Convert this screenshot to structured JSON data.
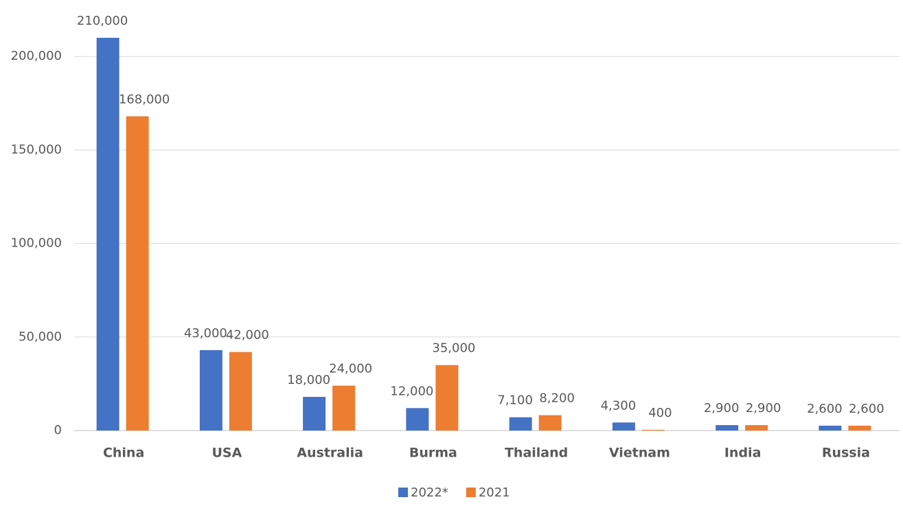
{
  "chart_data": {
    "type": "bar",
    "categories": [
      "China",
      "USA",
      "Australia",
      "Burma",
      "Thailand",
      "Vietnam",
      "India",
      "Russia"
    ],
    "series": [
      {
        "name": "2022*",
        "color": "#4472c4",
        "values": [
          210000,
          43000,
          18000,
          12000,
          7100,
          4300,
          2900,
          2600
        ],
        "value_labels": [
          "210,000",
          "43,000",
          "18,000",
          "12,000",
          "7,100",
          "4,300",
          "2,900",
          "2,600"
        ]
      },
      {
        "name": "2021",
        "color": "#ed7d31",
        "values": [
          168000,
          42000,
          24000,
          35000,
          8200,
          400,
          2900,
          2600
        ],
        "value_labels": [
          "168,000",
          "42,000",
          "24,000",
          "35,000",
          "8,200",
          "400",
          "2,900",
          "2,600"
        ]
      }
    ],
    "ylim": [
      0,
      210000
    ],
    "yticks": [
      0,
      {
        "value": 50000,
        "label": "50,000"
      },
      {
        "value": 100000,
        "label": "100,000"
      },
      {
        "value": 150000,
        "label": "150,000"
      },
      {
        "value": 200000,
        "label": "200,000"
      }
    ],
    "grid": true,
    "legend": "bottom"
  }
}
